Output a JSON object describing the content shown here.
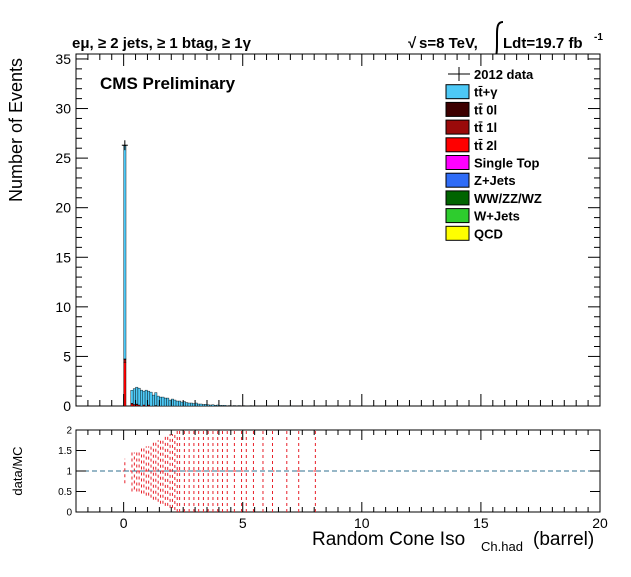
{
  "chart_data": [
    {
      "type": "bar",
      "header": {
        "left": "eμ, ≥ 2 jets, ≥ 1 btag, ≥ 1γ",
        "right_sqrt": "√",
        "right_energy": "s=8 TeV,",
        "right_lumi": "Ldt=19.7 fb",
        "right_lumi_exp": "-1"
      },
      "label": "CMS Preliminary",
      "ylabel": "Number of Events",
      "xlim": [
        -2,
        20
      ],
      "ylim": [
        0,
        35.5
      ],
      "xticks": [
        0,
        5,
        10,
        15,
        20
      ],
      "yticks": [
        0,
        5,
        10,
        15,
        20,
        25,
        30,
        35
      ],
      "legend": {
        "placement": "top-right",
        "entries": [
          {
            "label": "2012 data",
            "kind": "marker",
            "color": "#000000"
          },
          {
            "label": "tt̄+γ",
            "kind": "fill",
            "color": "#4dc9f6"
          },
          {
            "label": "tt̄ 0l",
            "kind": "fill",
            "color": "#3d0000"
          },
          {
            "label": "tt̄ 1l",
            "kind": "fill",
            "color": "#9a0a0a"
          },
          {
            "label": "tt̄ 2l",
            "kind": "fill",
            "color": "#ff0000"
          },
          {
            "label": "Single Top",
            "kind": "fill",
            "color": "#ff00ff"
          },
          {
            "label": "Z+Jets",
            "kind": "fill",
            "color": "#2f6cf6"
          },
          {
            "label": "WW/ZZ/WZ",
            "kind": "fill",
            "color": "#006400"
          },
          {
            "label": "W+Jets",
            "kind": "fill",
            "color": "#2ecc2e"
          },
          {
            "label": "QCD",
            "kind": "fill",
            "color": "#ffff00"
          }
        ]
      },
      "bin_width": 0.1,
      "series": [
        {
          "name": "tt̄+γ",
          "color": "#4dc9f6",
          "bins": [
            [
              0.0,
              21.5
            ],
            [
              0.3,
              1.3
            ],
            [
              0.4,
              1.6
            ],
            [
              0.5,
              1.7
            ],
            [
              0.6,
              1.7
            ],
            [
              0.7,
              1.6
            ],
            [
              0.8,
              1.4
            ],
            [
              0.9,
              1.6
            ],
            [
              1.0,
              1.4
            ],
            [
              1.1,
              1.4
            ],
            [
              1.2,
              1.1
            ],
            [
              1.3,
              1.3
            ],
            [
              1.4,
              1.0
            ],
            [
              1.5,
              0.9
            ],
            [
              1.6,
              0.9
            ],
            [
              1.7,
              0.8
            ],
            [
              1.8,
              0.8
            ],
            [
              1.9,
              0.6
            ],
            [
              2.0,
              0.7
            ],
            [
              2.1,
              0.6
            ],
            [
              2.2,
              0.5
            ],
            [
              2.3,
              0.5
            ],
            [
              2.4,
              0.4
            ],
            [
              2.5,
              0.45
            ],
            [
              2.6,
              0.35
            ],
            [
              2.7,
              0.3
            ],
            [
              2.8,
              0.3
            ],
            [
              2.9,
              0.25
            ],
            [
              3.0,
              0.3
            ],
            [
              3.1,
              0.2
            ],
            [
              3.2,
              0.2
            ],
            [
              3.3,
              0.15
            ],
            [
              3.4,
              0.18
            ],
            [
              3.5,
              0.12
            ],
            [
              3.6,
              0.1
            ],
            [
              3.7,
              0.12
            ],
            [
              3.8,
              0.08
            ],
            [
              3.9,
              0.1
            ],
            [
              4.0,
              0.08
            ],
            [
              4.1,
              0.06
            ],
            [
              4.2,
              0.07
            ],
            [
              4.4,
              0.05
            ],
            [
              4.6,
              0.05
            ],
            [
              4.8,
              0.05
            ],
            [
              5.0,
              0.04
            ],
            [
              5.3,
              0.04
            ],
            [
              5.6,
              0.03
            ],
            [
              6.0,
              0.03
            ],
            [
              6.5,
              0.02
            ],
            [
              7.0,
              0.02
            ]
          ]
        },
        {
          "name": "tt̄ 0l",
          "color": "#3d0000",
          "bins": [
            [
              0.0,
              0.05
            ]
          ]
        },
        {
          "name": "tt̄ 1l",
          "color": "#9a0a0a",
          "bins": [
            [
              0.0,
              0.3
            ],
            [
              0.3,
              0.08
            ],
            [
              0.5,
              0.05
            ]
          ]
        },
        {
          "name": "tt̄ 2l",
          "color": "#ff0000",
          "bins": [
            [
              0.0,
              4.4
            ],
            [
              0.3,
              0.2
            ],
            [
              0.4,
              0.15
            ],
            [
              0.5,
              0.15
            ],
            [
              0.6,
              0.1
            ],
            [
              0.8,
              0.1
            ],
            [
              1.0,
              0.1
            ],
            [
              1.3,
              0.05
            ]
          ]
        }
      ],
      "data_points": [
        [
          0.05,
          26.3,
          0.5
        ]
      ]
    },
    {
      "type": "scatter",
      "ylabel": "data/MC",
      "xlabel_main": "Random Cone Iso",
      "xlabel_sub": "Ch.had",
      "xlabel_suffix": "(barrel)",
      "xlim": [
        -2,
        20
      ],
      "ylim": [
        0,
        2
      ],
      "xticks": [
        0,
        5,
        10,
        15,
        20
      ],
      "xtick_labels": [
        "0",
        "5",
        "10",
        "15",
        "20"
      ],
      "yticks": [
        0,
        0.5,
        1,
        1.5,
        2
      ],
      "ytick_labels": [
        "0",
        "0.5",
        "1",
        "1.5",
        "2"
      ],
      "reference_line": 1,
      "points": [
        [
          0.05,
          1.0,
          0.3
        ],
        [
          0.35,
          1.0,
          0.5
        ],
        [
          0.45,
          1.0,
          0.45
        ],
        [
          0.55,
          1.0,
          0.5
        ],
        [
          0.65,
          1.0,
          0.5
        ],
        [
          0.75,
          1.0,
          0.55
        ],
        [
          0.85,
          1.0,
          0.55
        ],
        [
          0.95,
          1.0,
          0.6
        ],
        [
          1.05,
          1.0,
          0.6
        ],
        [
          1.15,
          1.0,
          0.65
        ],
        [
          1.25,
          1.0,
          0.7
        ],
        [
          1.35,
          1.0,
          0.7
        ],
        [
          1.45,
          1.0,
          0.75
        ],
        [
          1.55,
          1.0,
          0.8
        ],
        [
          1.65,
          1.0,
          0.8
        ],
        [
          1.75,
          1.0,
          0.85
        ],
        [
          1.85,
          1.0,
          0.85
        ],
        [
          1.95,
          1.0,
          0.9
        ],
        [
          2.05,
          1.0,
          0.9
        ],
        [
          2.15,
          1.0,
          0.95
        ],
        [
          2.25,
          1.0,
          1.0
        ],
        [
          2.35,
          1.0,
          1.0
        ],
        [
          2.55,
          1.0,
          1.0
        ],
        [
          2.75,
          1.0,
          1.0
        ],
        [
          2.95,
          1.0,
          1.0
        ],
        [
          3.15,
          1.0,
          1.0
        ],
        [
          3.35,
          1.0,
          1.0
        ],
        [
          3.55,
          1.0,
          1.0
        ],
        [
          3.75,
          1.0,
          1.0
        ],
        [
          3.95,
          1.0,
          1.0
        ],
        [
          4.15,
          1.0,
          1.0
        ],
        [
          4.35,
          1.0,
          1.0
        ],
        [
          4.65,
          1.0,
          1.0
        ],
        [
          4.95,
          1.0,
          1.0
        ],
        [
          5.15,
          1.0,
          1.0
        ],
        [
          5.45,
          1.0,
          1.0
        ],
        [
          5.85,
          1.0,
          1.0
        ],
        [
          6.25,
          1.0,
          1.0
        ],
        [
          6.85,
          1.0,
          1.0
        ],
        [
          7.35,
          1.0,
          1.0
        ],
        [
          8.05,
          1.0,
          1.0
        ]
      ]
    }
  ]
}
